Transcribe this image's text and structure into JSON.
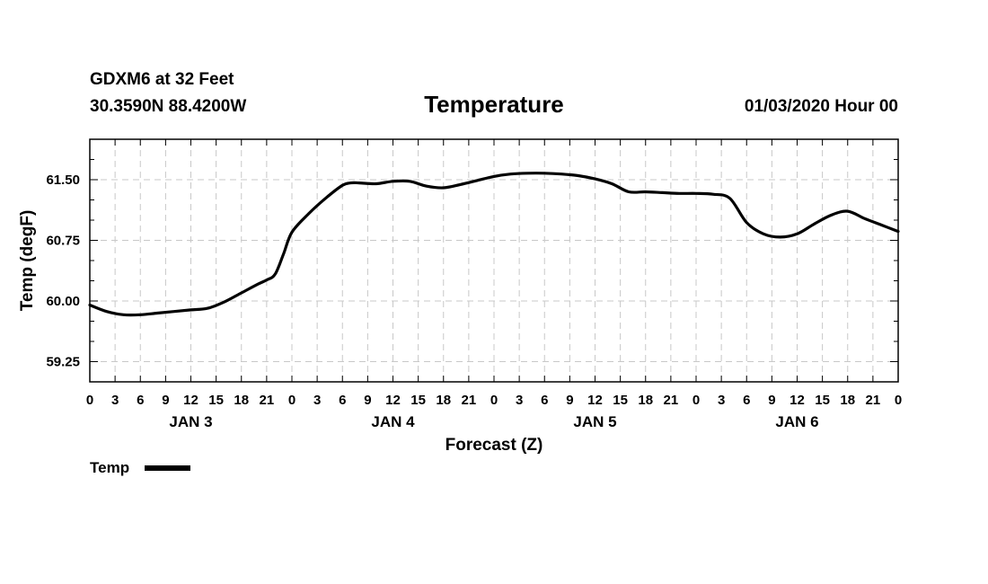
{
  "header": {
    "station_line": "GDXM6 at 32 Feet",
    "coords_line": "30.3590N 88.4200W",
    "title": "Temperature",
    "run_time": "01/03/2020 Hour 00"
  },
  "legend": {
    "label": "Temp"
  },
  "colors": {
    "line": "#000000",
    "grid": "#c8c8c8",
    "frame": "#000000"
  },
  "chart_data": {
    "type": "line",
    "title": "Temperature",
    "xlabel": "Forecast (Z)",
    "ylabel": "Temp (degF)",
    "x_unit": "hours since 01/03/2020 00Z",
    "xlim": [
      0,
      96
    ],
    "ylim": [
      59.0,
      62.0
    ],
    "y_ticks": [
      59.25,
      60.0,
      60.75,
      61.5
    ],
    "y_tick_labels": [
      "59.25",
      "60.00",
      "60.75",
      "61.50"
    ],
    "x_ticks": [
      0,
      3,
      6,
      9,
      12,
      15,
      18,
      21,
      24,
      27,
      30,
      33,
      36,
      39,
      42,
      45,
      48,
      51,
      54,
      57,
      60,
      63,
      66,
      69,
      72,
      75,
      78,
      81,
      84,
      87,
      90,
      93,
      96
    ],
    "x_tick_labels": [
      "0",
      "3",
      "6",
      "9",
      "12",
      "15",
      "18",
      "21",
      "0",
      "3",
      "6",
      "9",
      "12",
      "15",
      "18",
      "21",
      "0",
      "3",
      "6",
      "9",
      "12",
      "15",
      "18",
      "21",
      "0",
      "3",
      "6",
      "9",
      "12",
      "15",
      "18",
      "21",
      "0"
    ],
    "day_labels": [
      {
        "label": "JAN 3",
        "x": 12
      },
      {
        "label": "JAN 4",
        "x": 36
      },
      {
        "label": "JAN 5",
        "x": 60
      },
      {
        "label": "JAN 6",
        "x": 84
      }
    ],
    "series": [
      {
        "name": "Temp",
        "x": [
          0,
          2,
          4,
          6,
          8,
          10,
          12,
          14,
          16,
          18,
          20,
          21,
          22,
          23,
          24,
          26,
          28,
          30,
          31,
          32,
          34,
          36,
          38,
          40,
          42,
          44,
          46,
          48,
          50,
          52,
          54,
          56,
          58,
          60,
          62,
          64,
          66,
          68,
          70,
          72,
          74,
          76,
          78,
          80,
          82,
          84,
          86,
          88,
          90,
          92,
          94,
          96
        ],
        "values": [
          59.95,
          59.87,
          59.83,
          59.83,
          59.85,
          59.87,
          59.89,
          59.91,
          59.99,
          60.1,
          60.21,
          60.26,
          60.33,
          60.58,
          60.85,
          61.08,
          61.27,
          61.43,
          61.46,
          61.46,
          61.45,
          61.48,
          61.48,
          61.42,
          61.4,
          61.44,
          61.49,
          61.54,
          61.57,
          61.58,
          61.58,
          61.57,
          61.55,
          61.51,
          61.45,
          61.35,
          61.35,
          61.34,
          61.33,
          61.33,
          61.32,
          61.27,
          60.97,
          60.83,
          60.79,
          60.83,
          60.95,
          61.06,
          61.11,
          61.02,
          60.94,
          60.86
        ]
      }
    ]
  }
}
